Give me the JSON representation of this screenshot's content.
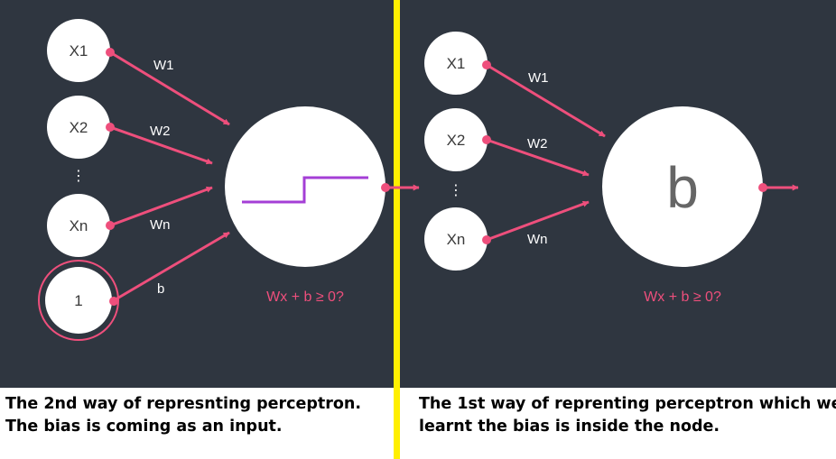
{
  "left": {
    "inputs": [
      "X1",
      "X2",
      "Xn",
      "1"
    ],
    "ellipsis": "⋮",
    "weights": [
      "W1",
      "W2",
      "Wn",
      "b"
    ],
    "condition": "Wx + b ≥ 0?",
    "caption": [
      "The 2nd way of represnting perceptron.",
      "The bias is coming as an input."
    ]
  },
  "right": {
    "inputs": [
      "X1",
      "X2",
      "Xn"
    ],
    "ellipsis": "⋮",
    "weights": [
      "W1",
      "W2",
      "Wn"
    ],
    "node_label": "b",
    "condition": "Wx + b ≥ 0?",
    "caption": [
      "The 1st way of reprenting perceptron which we",
      "learnt the bias is inside the node."
    ]
  },
  "colors": {
    "background": "#2f3640",
    "accent": "#ee4f7c",
    "step": "#a43fd6",
    "divider": "#ffef00"
  },
  "icons": {
    "step_function": "step-function-icon"
  }
}
